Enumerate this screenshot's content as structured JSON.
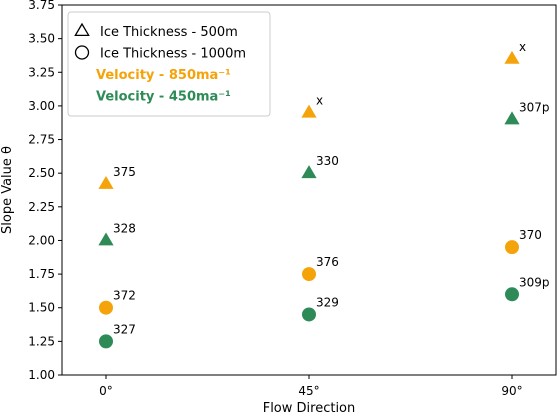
{
  "chart_data": {
    "type": "scatter",
    "xlabel": "Flow Direction",
    "ylabel": "Slope Value θ",
    "categories": [
      "0°",
      "45°",
      "90°"
    ],
    "ylim": [
      1.0,
      3.75
    ],
    "yticks": [
      "1.00",
      "1.25",
      "1.50",
      "1.75",
      "2.00",
      "2.25",
      "2.50",
      "2.75",
      "3.00",
      "3.25",
      "3.50",
      "3.75"
    ],
    "grid": false,
    "legend_position": "top-left",
    "legend": [
      {
        "label": "Ice Thickness - 500m",
        "kind": "marker",
        "marker": "triangle"
      },
      {
        "label": "Ice Thickness - 1000m",
        "kind": "marker",
        "marker": "circle"
      },
      {
        "label": "Velocity - 850ma⁻¹",
        "kind": "text",
        "color": "#f5a30a"
      },
      {
        "label": "Velocity - 450ma⁻¹",
        "kind": "text",
        "color": "#2e8b57"
      }
    ],
    "colors": {
      "velocity_850": "#f5a30a",
      "velocity_450": "#2e8b57"
    },
    "series": [
      {
        "marker": "triangle",
        "color": "#f5a30a",
        "values": [
          2.42,
          2.95,
          3.35
        ],
        "labels": [
          "375",
          "x",
          "x"
        ]
      },
      {
        "marker": "triangle",
        "color": "#2e8b57",
        "values": [
          2.0,
          2.5,
          2.9
        ],
        "labels": [
          "328",
          "330",
          "307p"
        ]
      },
      {
        "marker": "circle",
        "color": "#f5a30a",
        "values": [
          1.5,
          1.75,
          1.95
        ],
        "labels": [
          "372",
          "376",
          "370"
        ]
      },
      {
        "marker": "circle",
        "color": "#2e8b57",
        "values": [
          1.25,
          1.45,
          1.6
        ],
        "labels": [
          "327",
          "329",
          "309p"
        ]
      }
    ]
  }
}
